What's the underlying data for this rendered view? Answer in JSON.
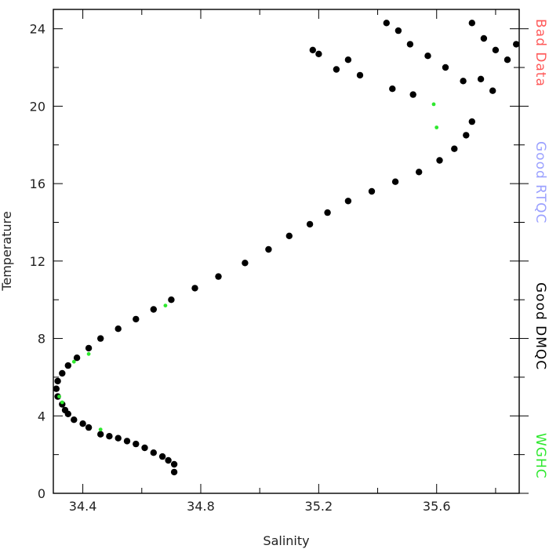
{
  "chart_data": {
    "type": "scatter",
    "title": "",
    "xlabel": "Salinity",
    "ylabel": "Temperature",
    "xlim": [
      34.3,
      35.88
    ],
    "ylim": [
      0,
      25
    ],
    "xticks": [
      34.4,
      34.8,
      35.2,
      35.6
    ],
    "xtick_labels": [
      "34.4",
      "34.8",
      "35.2",
      "35.6"
    ],
    "yticks": [
      0,
      4,
      8,
      12,
      16,
      20,
      24
    ],
    "ytick_labels": [
      "0",
      "4",
      "8",
      "12",
      "16",
      "20",
      "24"
    ],
    "grid": false,
    "legend_position": "right-side vertical",
    "legend": [
      {
        "label": "Bad Data",
        "color": "#ff5a5a"
      },
      {
        "label": "Good RTQC",
        "color": "#9aa0ff"
      },
      {
        "label": "Good DMQC",
        "color": "#000000"
      },
      {
        "label": "WGHC",
        "color": "#2ee82e"
      }
    ],
    "series": [
      {
        "name": "Good DMQC",
        "color": "#000000",
        "points": [
          [
            34.71,
            1.1
          ],
          [
            34.71,
            1.5
          ],
          [
            34.69,
            1.7
          ],
          [
            34.67,
            1.9
          ],
          [
            34.64,
            2.1
          ],
          [
            34.61,
            2.35
          ],
          [
            34.58,
            2.55
          ],
          [
            34.55,
            2.7
          ],
          [
            34.52,
            2.85
          ],
          [
            34.49,
            2.95
          ],
          [
            34.46,
            3.05
          ],
          [
            34.42,
            3.4
          ],
          [
            34.4,
            3.6
          ],
          [
            34.37,
            3.8
          ],
          [
            34.35,
            4.1
          ],
          [
            34.34,
            4.3
          ],
          [
            34.33,
            4.6
          ],
          [
            34.315,
            5.0
          ],
          [
            34.31,
            5.4
          ],
          [
            34.315,
            5.8
          ],
          [
            34.33,
            6.2
          ],
          [
            34.35,
            6.6
          ],
          [
            34.38,
            7.0
          ],
          [
            34.42,
            7.5
          ],
          [
            34.46,
            8.0
          ],
          [
            34.52,
            8.5
          ],
          [
            34.58,
            9.0
          ],
          [
            34.64,
            9.5
          ],
          [
            34.7,
            10.0
          ],
          [
            34.78,
            10.6
          ],
          [
            34.86,
            11.2
          ],
          [
            34.95,
            11.9
          ],
          [
            35.03,
            12.6
          ],
          [
            35.1,
            13.3
          ],
          [
            35.17,
            13.9
          ],
          [
            35.23,
            14.5
          ],
          [
            35.3,
            15.1
          ],
          [
            35.38,
            15.6
          ],
          [
            35.46,
            16.1
          ],
          [
            35.54,
            16.6
          ],
          [
            35.61,
            17.2
          ],
          [
            35.66,
            17.8
          ],
          [
            35.7,
            18.5
          ],
          [
            35.72,
            19.2
          ],
          [
            35.18,
            22.9
          ],
          [
            35.2,
            22.7
          ],
          [
            35.3,
            22.4
          ],
          [
            35.26,
            21.9
          ],
          [
            35.34,
            21.6
          ],
          [
            35.43,
            24.3
          ],
          [
            35.47,
            23.9
          ],
          [
            35.51,
            23.2
          ],
          [
            35.57,
            22.6
          ],
          [
            35.63,
            22.0
          ],
          [
            35.69,
            21.3
          ],
          [
            35.72,
            24.3
          ],
          [
            35.76,
            23.5
          ],
          [
            35.8,
            22.9
          ],
          [
            35.84,
            22.4
          ],
          [
            35.87,
            23.2
          ],
          [
            35.75,
            21.4
          ],
          [
            35.79,
            20.8
          ],
          [
            35.52,
            20.6
          ],
          [
            35.45,
            20.9
          ]
        ]
      },
      {
        "name": "WGHC",
        "color": "#2ee82e",
        "points": [
          [
            34.32,
            5.0
          ],
          [
            34.33,
            4.7
          ],
          [
            34.37,
            6.8
          ],
          [
            34.42,
            7.2
          ],
          [
            34.46,
            3.3
          ],
          [
            34.68,
            9.7
          ],
          [
            35.6,
            18.9
          ],
          [
            35.59,
            20.1
          ]
        ]
      }
    ]
  }
}
